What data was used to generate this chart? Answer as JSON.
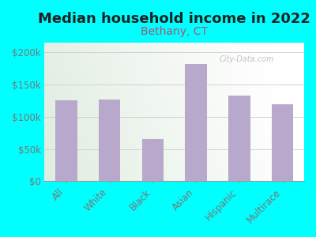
{
  "title": "Median household income in 2022",
  "subtitle": "Bethany, CT",
  "categories": [
    "All",
    "White",
    "Black",
    "Asian",
    "Hispanic",
    "Multirace"
  ],
  "values": [
    126000,
    127000,
    65000,
    182000,
    133000,
    119000
  ],
  "bar_color": "#b8a8cc",
  "background_outer": "#00ffff",
  "title_color": "#222222",
  "subtitle_color": "#aa5577",
  "tick_color": "#777777",
  "title_fontsize": 13,
  "subtitle_fontsize": 10,
  "ylabel_ticks": [
    0,
    50000,
    100000,
    150000,
    200000
  ],
  "ylabel_labels": [
    "$0",
    "$50k",
    "$100k",
    "$150k",
    "$200k"
  ],
  "ylim": [
    0,
    215000
  ],
  "watermark": "City-Data.com",
  "grid_color": "#cccccc"
}
